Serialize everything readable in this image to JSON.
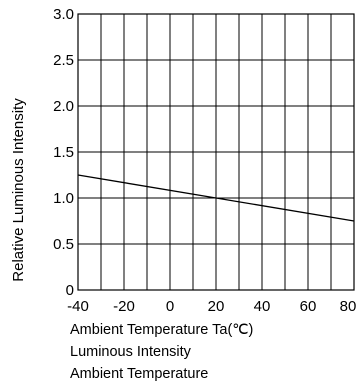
{
  "chart_data": {
    "type": "line",
    "xlabel": "Ambient Temperature Ta(℃)",
    "ylabel": "Relative Luminous Intensity",
    "xlim": [
      -40,
      80
    ],
    "ylim": [
      0,
      3.0
    ],
    "x_ticks": [
      "-40",
      "-20",
      "0",
      "20",
      "40",
      "60",
      "80"
    ],
    "y_ticks": [
      "0",
      "0.5",
      "1.0",
      "1.5",
      "2.0",
      "2.5",
      "3.0"
    ],
    "x_grid": [
      -40,
      -30,
      -20,
      -10,
      0,
      10,
      20,
      30,
      40,
      50,
      60,
      70,
      80
    ],
    "y_grid": [
      0,
      0.5,
      1.0,
      1.5,
      2.0,
      2.5,
      3.0
    ],
    "grid": true,
    "series": [
      {
        "x": [
          -40,
          20,
          80
        ],
        "y": [
          1.25,
          1.0,
          0.75
        ]
      }
    ]
  },
  "captions": {
    "line2": "Luminous Intensity",
    "line3": "Ambient Temperature"
  }
}
